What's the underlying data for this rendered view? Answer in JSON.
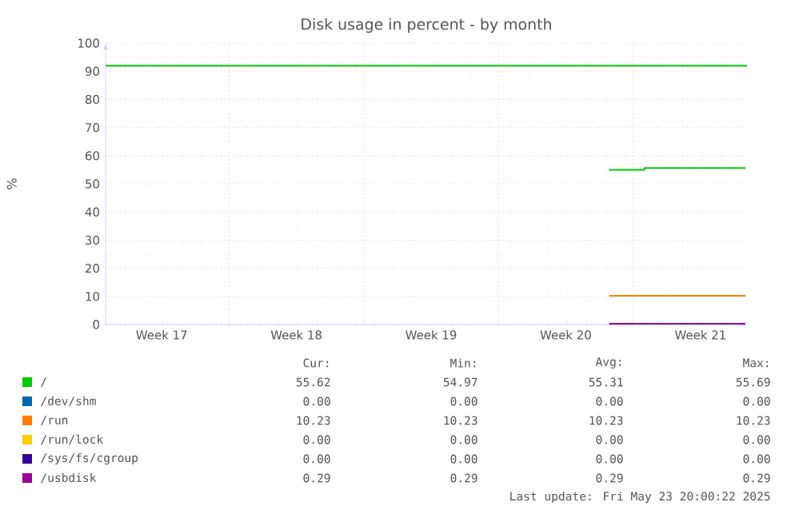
{
  "chart_data": {
    "type": "line",
    "title": "Disk usage in percent - by month",
    "ylabel": "%",
    "xlim": [
      "2025-04-20T14:00",
      "2025-05-23T22:00"
    ],
    "ylim": [
      0,
      100
    ],
    "xticks": [
      {
        "value": "2025-04-23T12:00",
        "label": "Week 17"
      },
      {
        "value": "2025-04-27T00:00",
        "label": null
      },
      {
        "value": "2025-04-30T12:00",
        "label": "Week 18"
      },
      {
        "value": "2025-05-04T00:00",
        "label": null
      },
      {
        "value": "2025-05-07T12:00",
        "label": "Week 19"
      },
      {
        "value": "2025-05-11T00:00",
        "label": null
      },
      {
        "value": "2025-05-14T12:00",
        "label": "Week 20"
      },
      {
        "value": "2025-05-18T00:00",
        "label": null
      },
      {
        "value": "2025-05-21T12:00",
        "label": "Week 21"
      }
    ],
    "yticks": [
      0,
      10,
      20,
      30,
      40,
      50,
      60,
      70,
      80,
      90,
      100
    ],
    "grid": true,
    "legend": "bottom",
    "marker": "none",
    "line_style": "solid",
    "ref_lines": [
      {
        "axis": "y",
        "value": 92,
        "color": "#00cc00"
      }
    ],
    "series": [
      {
        "name": "/",
        "color": "#00cc00",
        "x": [
          "2025-05-16T18:00",
          "2025-05-18T14:00",
          "2025-05-18T14:00",
          "2025-05-23T20:00"
        ],
        "values": [
          55.0,
          55.0,
          55.6,
          55.6
        ]
      },
      {
        "name": "/dev/shm",
        "color": "#0066b3",
        "values": [
          null,
          null
        ]
      },
      {
        "name": "/run",
        "color": "#ff8000",
        "x": [
          "2025-05-16T18:00",
          "2025-05-23T20:00"
        ],
        "values": [
          10.2,
          10.2
        ]
      },
      {
        "name": "/run/lock",
        "color": "#ffcc00",
        "values": [
          null,
          null
        ]
      },
      {
        "name": "/sys/fs/cgroup",
        "color": "#330099",
        "values": [
          null,
          null
        ]
      },
      {
        "name": "/usbdisk",
        "color": "#990099",
        "x": [
          "2025-05-16T18:00",
          "2025-05-23T20:00"
        ],
        "values": [
          0.3,
          0.3
        ]
      }
    ],
    "annotations": [
      "Cur:",
      "Min:",
      "Avg:",
      "Max:",
      "55.62",
      "54.97",
      "55.31",
      "55.69",
      "0.00",
      "0.00",
      "0.00",
      "0.00",
      "10.23",
      "10.23",
      "10.23",
      "10.23",
      "0.00",
      "0.00",
      "0.00",
      "0.00",
      "0.00",
      "0.00",
      "0.00",
      "0.00",
      "0.29",
      "0.29",
      "0.29",
      "0.29",
      "Last update: Fri May 23 20:00:22 2025"
    ]
  }
}
